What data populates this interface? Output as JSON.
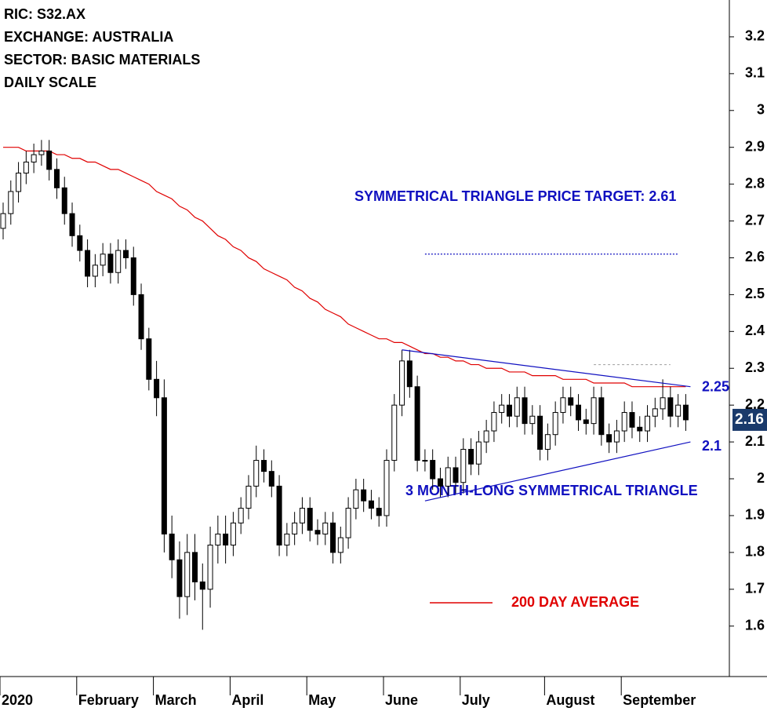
{
  "chart_data": {
    "type": "candlestick",
    "info": [
      "RIC: S32.AX",
      "EXCHANGE: AUSTRALIA",
      "SECTOR: BASIC MATERIALS",
      "DAILY SCALE"
    ],
    "categories": [
      "2020",
      null,
      null,
      null,
      null,
      null,
      null,
      null,
      null,
      null,
      "February",
      null,
      null,
      null,
      null,
      null,
      null,
      null,
      null,
      null,
      "March",
      null,
      null,
      null,
      null,
      null,
      null,
      null,
      null,
      null,
      "April",
      null,
      null,
      null,
      null,
      null,
      null,
      null,
      null,
      null,
      "May",
      null,
      null,
      null,
      null,
      null,
      null,
      null,
      null,
      null,
      "June",
      null,
      null,
      null,
      null,
      null,
      null,
      null,
      null,
      null,
      "July",
      null,
      null,
      null,
      null,
      null,
      null,
      null,
      null,
      null,
      null,
      "August",
      null,
      null,
      null,
      null,
      null,
      null,
      null,
      null,
      null,
      "September",
      null,
      null,
      null,
      null,
      null,
      null,
      null,
      null
    ],
    "open": [
      2.68,
      2.72,
      2.78,
      2.83,
      2.86,
      2.88,
      2.89,
      2.84,
      2.79,
      2.72,
      2.66,
      2.62,
      2.55,
      2.58,
      2.61,
      2.56,
      2.62,
      2.6,
      2.5,
      2.38,
      2.27,
      2.22,
      1.85,
      1.78,
      1.68,
      1.8,
      1.72,
      1.7,
      1.82,
      1.85,
      1.82,
      1.88,
      1.92,
      1.98,
      2.05,
      2.02,
      1.98,
      1.82,
      1.85,
      1.88,
      1.92,
      1.86,
      1.85,
      1.88,
      1.8,
      1.84,
      1.92,
      1.97,
      1.94,
      1.92,
      1.9,
      2.05,
      2.2,
      2.32,
      2.25,
      2.05,
      2.05,
      2.0,
      1.98,
      2.03,
      1.99,
      2.08,
      2.04,
      2.1,
      2.13,
      2.18,
      2.2,
      2.17,
      2.22,
      2.15,
      2.17,
      2.08,
      2.12,
      2.18,
      2.22,
      2.2,
      2.16,
      2.15,
      2.22,
      2.12,
      2.1,
      2.13,
      2.18,
      2.14,
      2.13,
      2.17,
      2.19,
      2.22,
      2.17,
      2.2
    ],
    "high": [
      2.75,
      2.81,
      2.86,
      2.89,
      2.91,
      2.92,
      2.92,
      2.87,
      2.82,
      2.75,
      2.69,
      2.65,
      2.61,
      2.64,
      2.64,
      2.65,
      2.65,
      2.63,
      2.53,
      2.41,
      2.32,
      2.27,
      1.9,
      1.83,
      1.85,
      1.85,
      1.77,
      1.87,
      1.9,
      1.9,
      1.91,
      1.95,
      2.01,
      2.09,
      2.08,
      2.05,
      2.01,
      1.88,
      1.91,
      1.95,
      1.95,
      1.89,
      1.91,
      1.91,
      1.87,
      1.95,
      2.0,
      2.0,
      1.97,
      1.95,
      2.08,
      2.23,
      2.35,
      2.35,
      2.28,
      2.08,
      2.08,
      2.03,
      2.06,
      2.06,
      2.11,
      2.11,
      2.13,
      2.16,
      2.21,
      2.23,
      2.23,
      2.25,
      2.25,
      2.2,
      2.2,
      2.15,
      2.21,
      2.25,
      2.25,
      2.23,
      2.19,
      2.25,
      2.25,
      2.15,
      2.16,
      2.21,
      2.21,
      2.17,
      2.2,
      2.22,
      2.27,
      2.25,
      2.23,
      2.23
    ],
    "low": [
      2.65,
      2.69,
      2.75,
      2.8,
      2.83,
      2.85,
      2.81,
      2.76,
      2.69,
      2.63,
      2.59,
      2.52,
      2.52,
      2.55,
      2.53,
      2.53,
      2.57,
      2.47,
      2.35,
      2.24,
      2.17,
      1.8,
      1.73,
      1.62,
      1.63,
      1.67,
      1.59,
      1.65,
      1.77,
      1.77,
      1.79,
      1.85,
      1.89,
      1.95,
      1.99,
      1.95,
      1.79,
      1.79,
      1.82,
      1.85,
      1.83,
      1.82,
      1.82,
      1.77,
      1.77,
      1.81,
      1.89,
      1.91,
      1.89,
      1.87,
      1.87,
      2.02,
      2.17,
      2.22,
      2.02,
      2.02,
      1.97,
      1.95,
      1.95,
      1.96,
      1.96,
      2.01,
      2.01,
      2.07,
      2.1,
      2.15,
      2.14,
      2.14,
      2.12,
      2.12,
      2.05,
      2.05,
      2.09,
      2.15,
      2.17,
      2.13,
      2.12,
      2.12,
      2.09,
      2.07,
      2.07,
      2.1,
      2.11,
      2.1,
      2.1,
      2.14,
      2.16,
      2.14,
      2.14,
      2.13
    ],
    "close": [
      2.72,
      2.78,
      2.83,
      2.86,
      2.88,
      2.89,
      2.84,
      2.79,
      2.72,
      2.66,
      2.62,
      2.55,
      2.58,
      2.61,
      2.56,
      2.62,
      2.6,
      2.5,
      2.38,
      2.27,
      2.22,
      1.85,
      1.78,
      1.68,
      1.8,
      1.72,
      1.7,
      1.82,
      1.85,
      1.82,
      1.88,
      1.92,
      1.98,
      2.05,
      2.02,
      1.98,
      1.82,
      1.85,
      1.88,
      1.92,
      1.86,
      1.85,
      1.88,
      1.8,
      1.84,
      1.92,
      1.97,
      1.94,
      1.92,
      1.9,
      2.05,
      2.2,
      2.32,
      2.25,
      2.05,
      2.05,
      2.0,
      1.98,
      2.03,
      1.99,
      2.08,
      2.04,
      2.1,
      2.13,
      2.18,
      2.2,
      2.17,
      2.22,
      2.15,
      2.17,
      2.08,
      2.12,
      2.18,
      2.22,
      2.2,
      2.16,
      2.15,
      2.22,
      2.12,
      2.1,
      2.13,
      2.18,
      2.14,
      2.13,
      2.17,
      2.19,
      2.22,
      2.17,
      2.2,
      2.16
    ],
    "up_color": "#ffffff",
    "down_color": "#000000",
    "moving_average": {
      "name": "200 DAY AVERAGE",
      "color": "#e00000",
      "values": [
        2.9,
        2.9,
        2.9,
        2.89,
        2.89,
        2.89,
        2.89,
        2.88,
        2.88,
        2.87,
        2.87,
        2.86,
        2.86,
        2.85,
        2.84,
        2.84,
        2.83,
        2.82,
        2.81,
        2.8,
        2.78,
        2.77,
        2.76,
        2.74,
        2.73,
        2.71,
        2.7,
        2.68,
        2.66,
        2.65,
        2.63,
        2.62,
        2.6,
        2.59,
        2.57,
        2.56,
        2.55,
        2.54,
        2.52,
        2.51,
        2.49,
        2.48,
        2.46,
        2.45,
        2.44,
        2.42,
        2.41,
        2.4,
        2.39,
        2.38,
        2.38,
        2.37,
        2.37,
        2.36,
        2.35,
        2.34,
        2.34,
        2.33,
        2.33,
        2.32,
        2.32,
        2.31,
        2.31,
        2.3,
        2.3,
        2.3,
        2.29,
        2.29,
        2.29,
        2.28,
        2.28,
        2.28,
        2.28,
        2.27,
        2.27,
        2.27,
        2.27,
        2.26,
        2.26,
        2.26,
        2.26,
        2.26,
        2.25,
        2.25,
        2.25,
        2.25,
        2.25,
        2.25,
        2.25,
        2.25
      ]
    },
    "trendlines": [
      {
        "color": "#1010c0",
        "x": [
          52,
          89
        ],
        "y": [
          2.35,
          2.25
        ]
      },
      {
        "color": "#1010c0",
        "x": [
          55,
          89
        ],
        "y": [
          1.94,
          2.1
        ]
      }
    ],
    "target": {
      "label": "SYMMETRICAL TRIANGLE PRICE TARGET: 2.61",
      "value": 2.61,
      "x": [
        55,
        88
      ],
      "color": "#1010c0"
    },
    "resistance": {
      "value": 2.31,
      "x": [
        77,
        87
      ],
      "color": "#aaaaaa"
    },
    "pattern_label": "3 MONTH-LONG SYMMETRICAL TRIANGLE",
    "last_price": 2.16,
    "ylim": [
      1.463,
      3.3
    ],
    "yticks": [
      1.6,
      1.7,
      1.8,
      1.9,
      2.0,
      2.1,
      2.2,
      2.3,
      2.4,
      2.5,
      2.6,
      2.7,
      2.8,
      2.9,
      3.0,
      3.1,
      3.2
    ]
  }
}
